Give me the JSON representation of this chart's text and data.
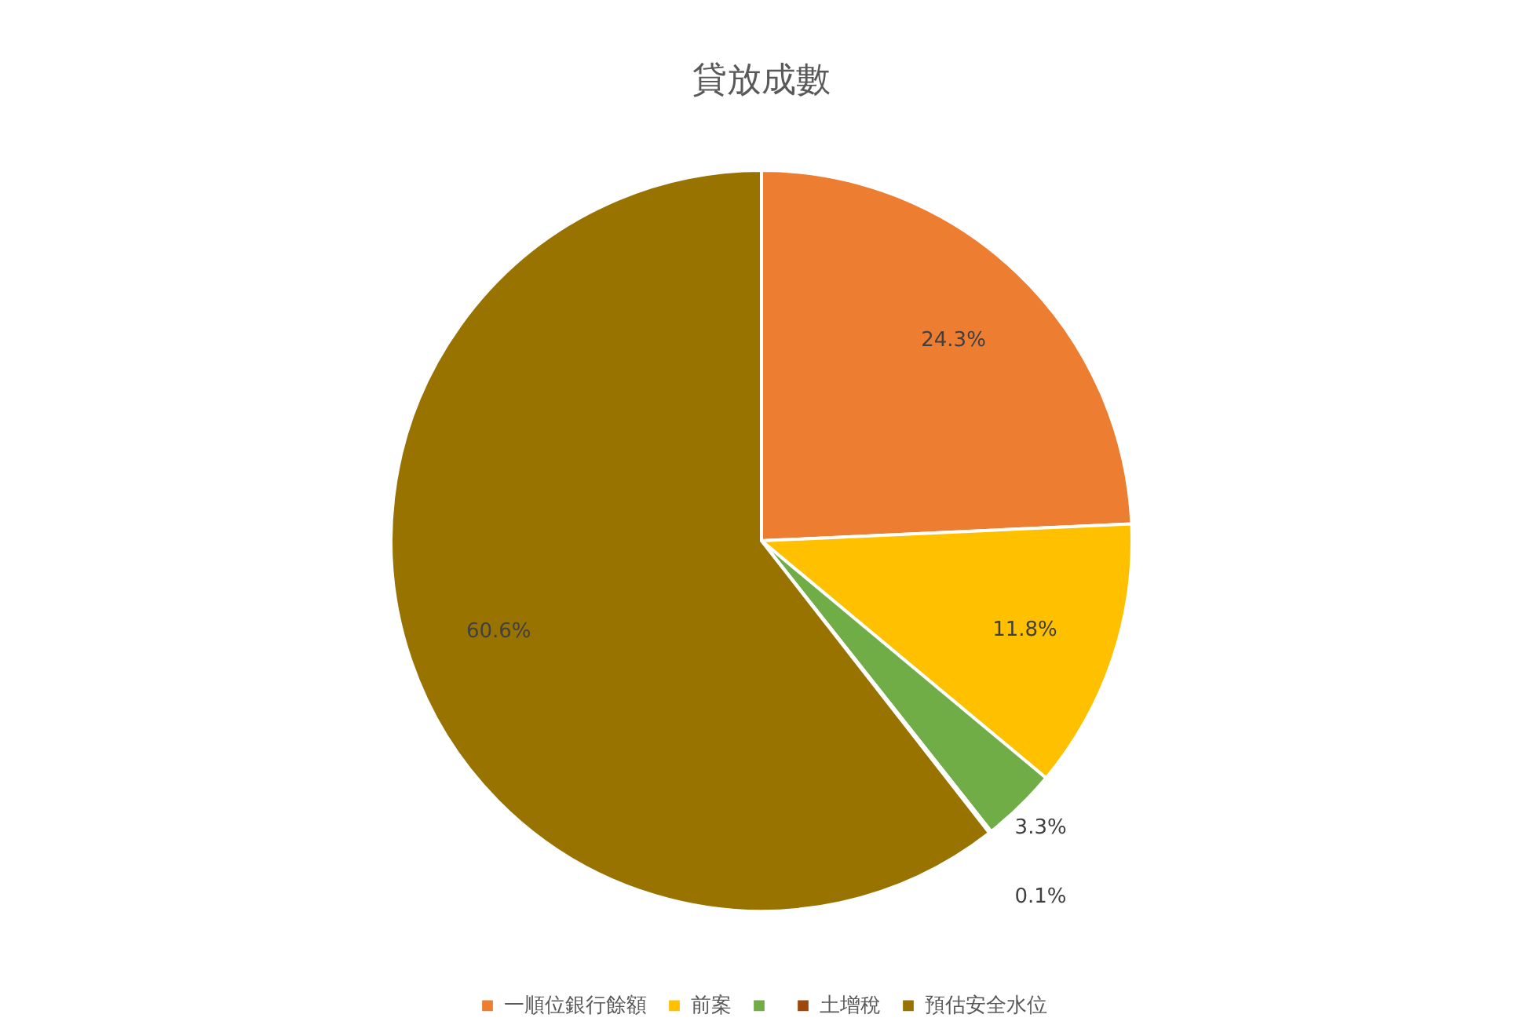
{
  "chart_data": {
    "type": "pie",
    "title": "貸放成數",
    "categories": [
      "一順位銀行餘額",
      "前案",
      null,
      "土增稅",
      "預估安全水位"
    ],
    "values": [
      24.3,
      11.8,
      3.3,
      0.1,
      60.6
    ],
    "value_labels": [
      "24.3%",
      "11.8%",
      "3.3%",
      "0.1%",
      "60.6%"
    ],
    "colors": [
      "#ed7d31",
      "#ffc000",
      "#70ad47",
      "#9e480e",
      "#997300"
    ],
    "legend": "bottom"
  }
}
